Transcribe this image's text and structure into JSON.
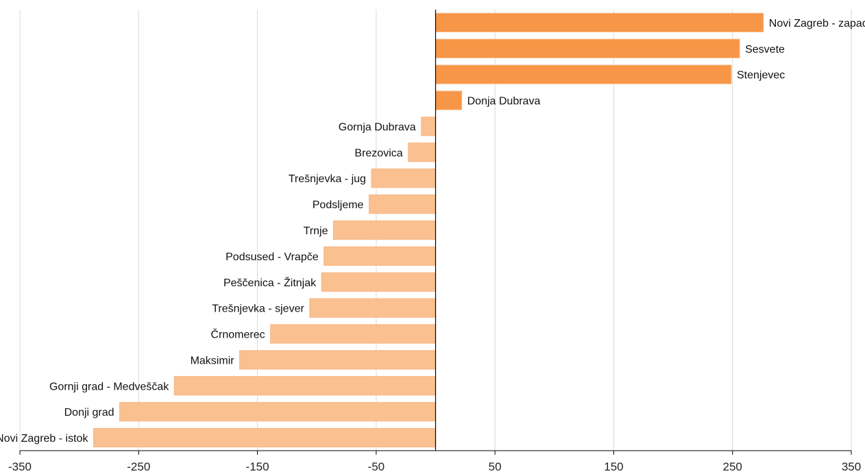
{
  "chart_data": {
    "type": "bar",
    "orientation": "horizontal",
    "xlim": [
      -350,
      350
    ],
    "xticks": [
      -350,
      -250,
      -150,
      -50,
      50,
      150,
      250,
      350
    ],
    "grid": true,
    "legend": "none",
    "colors": {
      "positive": "#f79646",
      "negative": "#fac090",
      "gridline": "#d9d9d9",
      "axis": "#000000"
    },
    "categories": [
      "Novi Zagreb - zapad",
      "Sesvete",
      "Stenjevec",
      "Donja Dubrava",
      "Gornja Dubrava",
      "Brezovica",
      "Trešnjevka - jug",
      "Podsljeme",
      "Trnje",
      "Podsused - Vrapče",
      "Peščenica - Žitnjak",
      "Trešnjevka - sjever",
      "Črnomerec",
      "Maksimir",
      "Gornji grad - Medveščak",
      "Donji grad",
      "Novi Zagreb - istok"
    ],
    "values": [
      276,
      256,
      249,
      22,
      -12,
      -23,
      -54,
      -56,
      -86,
      -94,
      -96,
      -106,
      -139,
      -165,
      -220,
      -266,
      -288
    ]
  }
}
